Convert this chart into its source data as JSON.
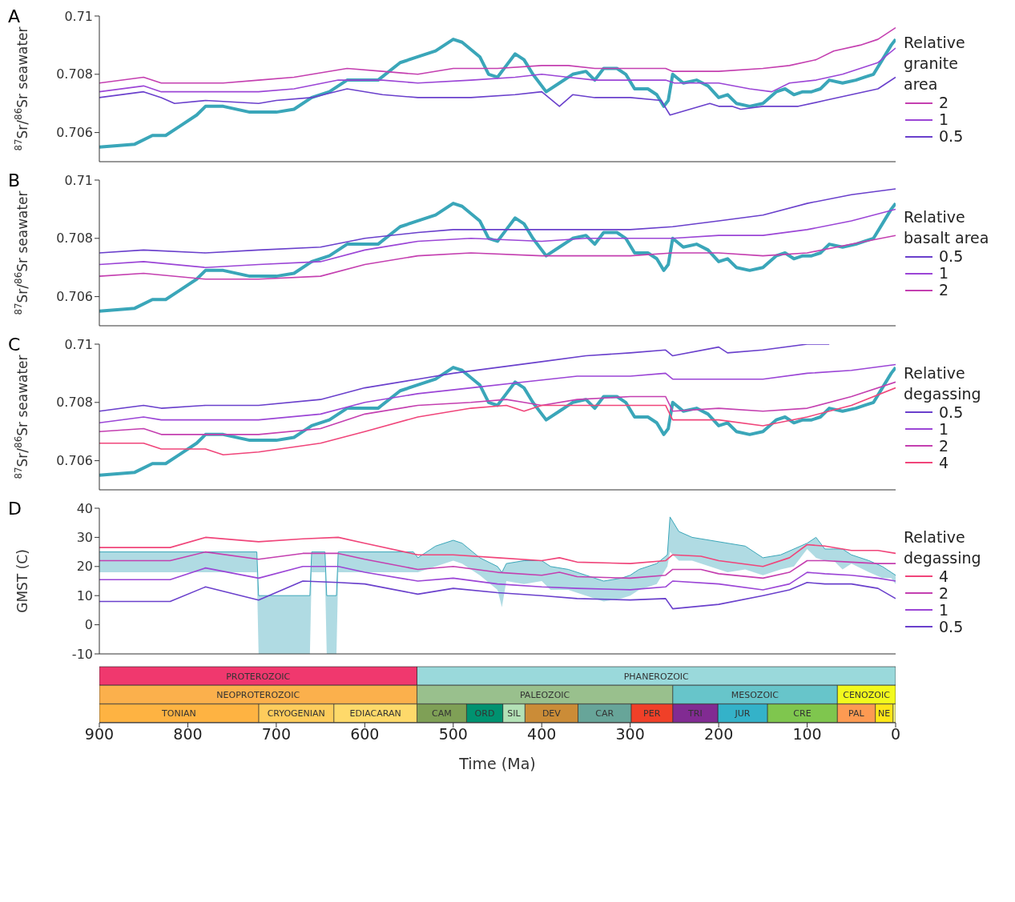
{
  "chart_data": [
    {
      "type": "line",
      "title": "A",
      "ylabel": "$^{87}$Sr/$^{86}$Sr seawater",
      "legend_title": "Relative granite area",
      "legend": "right",
      "xlim": [
        900,
        0
      ],
      "xticks": [
        900,
        800,
        700,
        600,
        500,
        400,
        300,
        200,
        100,
        0
      ],
      "ylim": [
        0.705,
        0.71
      ],
      "yticks": [
        0.706,
        0.708,
        0.71
      ],
      "tick_labels": "y",
      "series": [
        {
          "color": "#3aa6b9",
          "x": [
            900,
            860,
            840,
            825,
            810,
            790,
            780,
            760,
            730,
            700,
            680,
            660,
            640,
            620,
            600,
            585,
            560,
            540,
            520,
            500,
            490,
            470,
            460,
            450,
            440,
            430,
            420,
            410,
            395,
            380,
            365,
            350,
            340,
            330,
            315,
            305,
            295,
            280,
            270,
            262,
            257,
            252,
            240,
            225,
            212,
            200,
            190,
            180,
            165,
            150,
            135,
            125,
            115,
            105,
            95,
            85,
            75,
            60,
            45,
            35,
            25,
            15,
            5,
            0
          ],
          "values": [
            0.7055,
            0.7056,
            0.7059,
            0.7059,
            0.7062,
            0.7066,
            0.7069,
            0.7069,
            0.7067,
            0.7067,
            0.7068,
            0.7072,
            0.7074,
            0.7078,
            0.7078,
            0.7078,
            0.7084,
            0.7086,
            0.7088,
            0.7092,
            0.7091,
            0.7086,
            0.708,
            0.7079,
            0.7083,
            0.7087,
            0.7085,
            0.708,
            0.7074,
            0.7077,
            0.708,
            0.7081,
            0.7078,
            0.7082,
            0.7082,
            0.708,
            0.7075,
            0.7075,
            0.7073,
            0.7069,
            0.7071,
            0.708,
            0.7077,
            0.7078,
            0.7076,
            0.7072,
            0.7073,
            0.707,
            0.7069,
            0.707,
            0.7074,
            0.7075,
            0.7073,
            0.7074,
            0.7074,
            0.7075,
            0.7078,
            0.7077,
            0.7078,
            0.7079,
            0.708,
            0.7085,
            0.709,
            0.7092
          ]
        },
        {
          "name": "2",
          "color": "#c43fb0",
          "x": [
            900,
            850,
            830,
            800,
            760,
            720,
            680,
            620,
            580,
            540,
            500,
            450,
            400,
            370,
            340,
            300,
            260,
            252,
            200,
            150,
            120,
            90,
            70,
            40,
            20,
            0
          ],
          "values": [
            0.7077,
            0.7079,
            0.7077,
            0.7077,
            0.7077,
            0.7078,
            0.7079,
            0.7082,
            0.7081,
            0.708,
            0.7082,
            0.7082,
            0.7083,
            0.7083,
            0.7082,
            0.7082,
            0.7082,
            0.7081,
            0.7081,
            0.7082,
            0.7083,
            0.7085,
            0.7088,
            0.709,
            0.7092,
            0.7096
          ]
        },
        {
          "name": "1",
          "color": "#9b45d6",
          "x": [
            900,
            850,
            830,
            780,
            720,
            680,
            630,
            580,
            540,
            480,
            430,
            400,
            370,
            340,
            300,
            260,
            250,
            200,
            165,
            140,
            120,
            90,
            60,
            40,
            20,
            0
          ],
          "values": [
            0.7074,
            0.7076,
            0.7074,
            0.7074,
            0.7074,
            0.7075,
            0.7078,
            0.7078,
            0.7077,
            0.7078,
            0.7079,
            0.708,
            0.7079,
            0.7078,
            0.7078,
            0.7078,
            0.7077,
            0.7077,
            0.7075,
            0.7074,
            0.7077,
            0.7078,
            0.708,
            0.7082,
            0.7084,
            0.7089
          ]
        },
        {
          "name": "0.5",
          "color": "#6a40cc",
          "x": [
            900,
            850,
            830,
            815,
            780,
            720,
            700,
            660,
            620,
            580,
            540,
            480,
            430,
            400,
            380,
            365,
            340,
            300,
            265,
            255,
            210,
            200,
            185,
            175,
            150,
            130,
            110,
            80,
            50,
            20,
            0
          ],
          "values": [
            0.7072,
            0.7074,
            0.7072,
            0.707,
            0.7071,
            0.707,
            0.7071,
            0.7072,
            0.7075,
            0.7073,
            0.7072,
            0.7072,
            0.7073,
            0.7074,
            0.7069,
            0.7073,
            0.7072,
            0.7072,
            0.7071,
            0.7066,
            0.707,
            0.7069,
            0.7069,
            0.7068,
            0.7069,
            0.7069,
            0.7069,
            0.7071,
            0.7073,
            0.7075,
            0.7079
          ]
        }
      ]
    },
    {
      "type": "line",
      "title": "B",
      "ylabel": "$^{87}$Sr/$^{86}$Sr seawater",
      "legend_title": "Relative basalt area",
      "legend": "right",
      "xlim": [
        900,
        0
      ],
      "xticks": [
        900,
        800,
        700,
        600,
        500,
        400,
        300,
        200,
        100,
        0
      ],
      "ylim": [
        0.705,
        0.71
      ],
      "yticks": [
        0.706,
        0.708,
        0.71
      ],
      "tick_labels": "y",
      "series": [
        {
          "color": "#3aa6b9",
          "x": [
            900,
            860,
            840,
            825,
            810,
            790,
            780,
            760,
            730,
            700,
            680,
            660,
            640,
            620,
            600,
            585,
            560,
            540,
            520,
            500,
            490,
            470,
            460,
            450,
            440,
            430,
            420,
            410,
            395,
            380,
            365,
            350,
            340,
            330,
            315,
            305,
            295,
            280,
            270,
            262,
            257,
            252,
            240,
            225,
            212,
            200,
            190,
            180,
            165,
            150,
            135,
            125,
            115,
            105,
            95,
            85,
            75,
            60,
            45,
            35,
            25,
            15,
            5,
            0
          ],
          "values": [
            0.7055,
            0.7056,
            0.7059,
            0.7059,
            0.7062,
            0.7066,
            0.7069,
            0.7069,
            0.7067,
            0.7067,
            0.7068,
            0.7072,
            0.7074,
            0.7078,
            0.7078,
            0.7078,
            0.7084,
            0.7086,
            0.7088,
            0.7092,
            0.7091,
            0.7086,
            0.708,
            0.7079,
            0.7083,
            0.7087,
            0.7085,
            0.708,
            0.7074,
            0.7077,
            0.708,
            0.7081,
            0.7078,
            0.7082,
            0.7082,
            0.708,
            0.7075,
            0.7075,
            0.7073,
            0.7069,
            0.7071,
            0.708,
            0.7077,
            0.7078,
            0.7076,
            0.7072,
            0.7073,
            0.707,
            0.7069,
            0.707,
            0.7074,
            0.7075,
            0.7073,
            0.7074,
            0.7074,
            0.7075,
            0.7078,
            0.7077,
            0.7078,
            0.7079,
            0.708,
            0.7085,
            0.709,
            0.7092
          ]
        },
        {
          "name": "0.5",
          "color": "#6a40cc",
          "x": [
            900,
            850,
            780,
            720,
            650,
            600,
            540,
            500,
            450,
            400,
            360,
            300,
            252,
            200,
            150,
            100,
            50,
            0
          ],
          "values": [
            0.7075,
            0.7076,
            0.7075,
            0.7076,
            0.7077,
            0.708,
            0.7082,
            0.7083,
            0.7083,
            0.7083,
            0.7083,
            0.7083,
            0.7084,
            0.7086,
            0.7088,
            0.7092,
            0.7095,
            0.7097
          ]
        },
        {
          "name": "1",
          "color": "#9b45d6",
          "x": [
            900,
            850,
            780,
            720,
            650,
            600,
            540,
            480,
            400,
            350,
            300,
            252,
            200,
            150,
            100,
            50,
            0
          ],
          "values": [
            0.7071,
            0.7072,
            0.707,
            0.7071,
            0.7072,
            0.7076,
            0.7079,
            0.708,
            0.7079,
            0.708,
            0.708,
            0.708,
            0.7081,
            0.7081,
            0.7083,
            0.7086,
            0.709
          ]
        },
        {
          "name": "2",
          "color": "#c43fb0",
          "x": [
            900,
            850,
            780,
            720,
            650,
            600,
            540,
            480,
            400,
            350,
            300,
            252,
            200,
            150,
            100,
            50,
            0
          ],
          "values": [
            0.7067,
            0.7068,
            0.7066,
            0.7066,
            0.7067,
            0.7071,
            0.7074,
            0.7075,
            0.7074,
            0.7074,
            0.7074,
            0.7075,
            0.7075,
            0.7074,
            0.7075,
            0.7078,
            0.7081
          ]
        }
      ]
    },
    {
      "type": "line",
      "title": "C",
      "ylabel": "$^{87}$Sr/$^{86}$Sr seawater",
      "legend_title": "Relative degassing",
      "legend": "right",
      "xlim": [
        900,
        0
      ],
      "xticks": [
        900,
        800,
        700,
        600,
        500,
        400,
        300,
        200,
        100,
        0
      ],
      "ylim": [
        0.705,
        0.71
      ],
      "yticks": [
        0.706,
        0.708,
        0.71
      ],
      "tick_labels": "y",
      "series": [
        {
          "color": "#3aa6b9",
          "x": [
            900,
            860,
            840,
            825,
            810,
            790,
            780,
            760,
            730,
            700,
            680,
            660,
            640,
            620,
            600,
            585,
            560,
            540,
            520,
            500,
            490,
            470,
            460,
            450,
            440,
            430,
            420,
            410,
            395,
            380,
            365,
            350,
            340,
            330,
            315,
            305,
            295,
            280,
            270,
            262,
            257,
            252,
            240,
            225,
            212,
            200,
            190,
            180,
            165,
            150,
            135,
            125,
            115,
            105,
            95,
            85,
            75,
            60,
            45,
            35,
            25,
            15,
            5,
            0
          ],
          "values": [
            0.7055,
            0.7056,
            0.7059,
            0.7059,
            0.7062,
            0.7066,
            0.7069,
            0.7069,
            0.7067,
            0.7067,
            0.7068,
            0.7072,
            0.7074,
            0.7078,
            0.7078,
            0.7078,
            0.7084,
            0.7086,
            0.7088,
            0.7092,
            0.7091,
            0.7086,
            0.708,
            0.7079,
            0.7083,
            0.7087,
            0.7085,
            0.708,
            0.7074,
            0.7077,
            0.708,
            0.7081,
            0.7078,
            0.7082,
            0.7082,
            0.708,
            0.7075,
            0.7075,
            0.7073,
            0.7069,
            0.7071,
            0.708,
            0.7077,
            0.7078,
            0.7076,
            0.7072,
            0.7073,
            0.707,
            0.7069,
            0.707,
            0.7074,
            0.7075,
            0.7073,
            0.7074,
            0.7074,
            0.7075,
            0.7078,
            0.7077,
            0.7078,
            0.7079,
            0.708,
            0.7085,
            0.709,
            0.7092
          ]
        },
        {
          "name": "0.5",
          "color": "#6a40cc",
          "x": [
            900,
            850,
            830,
            780,
            720,
            650,
            600,
            540,
            500,
            450,
            400,
            350,
            300,
            260,
            252,
            200,
            190,
            150,
            100,
            75
          ],
          "values": [
            0.7077,
            0.7079,
            0.7078,
            0.7079,
            0.7079,
            0.7081,
            0.7085,
            0.7088,
            0.709,
            0.7092,
            0.7094,
            0.7096,
            0.7097,
            0.7098,
            0.7096,
            0.7099,
            0.7097,
            0.7098,
            0.71,
            0.71
          ]
        },
        {
          "name": "1",
          "color": "#9b45d6",
          "x": [
            900,
            850,
            830,
            780,
            720,
            650,
            600,
            540,
            480,
            420,
            360,
            300,
            260,
            252,
            200,
            150,
            100,
            50,
            0
          ],
          "values": [
            0.7073,
            0.7075,
            0.7074,
            0.7074,
            0.7074,
            0.7076,
            0.708,
            0.7083,
            0.7085,
            0.7087,
            0.7089,
            0.7089,
            0.709,
            0.7088,
            0.7088,
            0.7088,
            0.709,
            0.7091,
            0.7093
          ]
        },
        {
          "name": "2",
          "color": "#c43fb0",
          "x": [
            900,
            850,
            830,
            780,
            720,
            650,
            600,
            540,
            480,
            440,
            420,
            400,
            360,
            300,
            260,
            252,
            200,
            150,
            100,
            50,
            0
          ],
          "values": [
            0.707,
            0.7071,
            0.7069,
            0.7069,
            0.7069,
            0.7071,
            0.7076,
            0.7079,
            0.708,
            0.7081,
            0.708,
            0.7079,
            0.7081,
            0.7082,
            0.7082,
            0.7077,
            0.7078,
            0.7077,
            0.7078,
            0.7082,
            0.7087
          ]
        },
        {
          "name": "4",
          "color": "#f0457a",
          "x": [
            900,
            850,
            830,
            780,
            760,
            720,
            650,
            600,
            540,
            480,
            440,
            420,
            400,
            360,
            300,
            260,
            252,
            200,
            150,
            100,
            50,
            0
          ],
          "values": [
            0.7066,
            0.7066,
            0.7064,
            0.7064,
            0.7062,
            0.7063,
            0.7066,
            0.707,
            0.7075,
            0.7078,
            0.7079,
            0.7077,
            0.7079,
            0.7079,
            0.7079,
            0.7079,
            0.7074,
            0.7074,
            0.7072,
            0.7075,
            0.7079,
            0.7085
          ]
        }
      ]
    },
    {
      "type": "line",
      "title": "D",
      "ylabel": "GMST (C)",
      "legend_title": "Relative degassing",
      "legend": "right",
      "xlim": [
        900,
        0
      ],
      "xticks": [
        900,
        800,
        700,
        600,
        500,
        400,
        300,
        200,
        100,
        0
      ],
      "ylim": [
        -10,
        40
      ],
      "yticks": [
        -10,
        0,
        10,
        20,
        30,
        40
      ],
      "tick_labels": "y",
      "series": [
        {
          "type": "line",
          "color": "#3aa6b9",
          "x": [
            900,
            722,
            720,
            662,
            660,
            645,
            643,
            632,
            630,
            545,
            540,
            520,
            500,
            490,
            470,
            450,
            445,
            440,
            420,
            400,
            390,
            370,
            350,
            330,
            310,
            300,
            290,
            270,
            258,
            255,
            245,
            230,
            210,
            190,
            170,
            150,
            130,
            115,
            100,
            90,
            80,
            70,
            60,
            50,
            30,
            15,
            5,
            0
          ],
          "lower": [
            18,
            18,
            -10,
            -10,
            18,
            18,
            -10,
            -10,
            18,
            18,
            18,
            20,
            22,
            21,
            17,
            12,
            6,
            15,
            14,
            15,
            12,
            12,
            10,
            8,
            9,
            10,
            12,
            14,
            20,
            25,
            22,
            22,
            20,
            18,
            19,
            17,
            19,
            20,
            26,
            23,
            22,
            22,
            19,
            21,
            18,
            16,
            16,
            14
          ],
          "values": [
            25,
            25,
            10,
            10,
            25,
            25,
            10,
            10,
            25,
            25,
            23,
            27,
            29,
            28,
            23,
            20,
            18,
            21,
            22,
            22,
            20,
            19,
            17,
            15,
            16,
            17,
            19,
            21,
            24,
            37,
            32,
            30,
            29,
            28,
            27,
            23,
            24,
            26,
            28,
            30,
            26,
            26,
            26,
            24,
            22,
            20,
            18,
            17
          ],
          "upper": [
            25,
            25,
            10,
            10,
            25,
            25,
            10,
            10,
            25,
            25,
            23,
            27,
            29,
            28,
            23,
            20,
            18,
            21,
            22,
            22,
            20,
            19,
            17,
            15,
            16,
            17,
            19,
            21,
            24,
            37,
            32,
            30,
            29,
            28,
            27,
            23,
            24,
            26,
            28,
            30,
            26,
            26,
            26,
            24,
            22,
            20,
            18,
            17
          ]
        },
        {
          "name": "4",
          "color": "#f0457a",
          "x": [
            900,
            820,
            780,
            720,
            670,
            630,
            600,
            540,
            500,
            450,
            400,
            380,
            360,
            300,
            260,
            252,
            220,
            200,
            150,
            120,
            100,
            80,
            50,
            20,
            0
          ],
          "values": [
            26.5,
            26.5,
            30,
            28.5,
            29.5,
            30,
            28,
            24,
            24,
            23,
            22,
            23,
            21.5,
            21,
            22,
            24,
            23.5,
            22,
            20,
            23,
            27.5,
            27,
            25.5,
            25.5,
            24.5
          ]
        },
        {
          "name": "2",
          "color": "#c43fb0",
          "x": [
            900,
            820,
            780,
            720,
            670,
            630,
            600,
            540,
            500,
            450,
            400,
            380,
            360,
            300,
            260,
            252,
            220,
            200,
            150,
            120,
            100,
            80,
            50,
            20,
            0
          ],
          "values": [
            22,
            22,
            25,
            22.5,
            24.5,
            24.5,
            22.5,
            19,
            20,
            18,
            17,
            18,
            16.5,
            16,
            17,
            19,
            19,
            17.5,
            16,
            18,
            22,
            22,
            21.5,
            21,
            21
          ]
        },
        {
          "name": "1",
          "color": "#9b45d6",
          "x": [
            900,
            820,
            780,
            720,
            670,
            630,
            600,
            540,
            500,
            450,
            400,
            360,
            300,
            260,
            252,
            200,
            150,
            120,
            100,
            80,
            50,
            20,
            0
          ],
          "values": [
            15.5,
            15.5,
            19.5,
            16,
            20,
            20,
            18,
            15,
            16,
            14,
            13,
            12.5,
            12,
            13,
            15,
            14,
            12,
            14,
            18,
            17.5,
            17,
            16,
            15
          ]
        },
        {
          "name": "0.5",
          "color": "#6a40cc",
          "x": [
            900,
            820,
            780,
            720,
            670,
            630,
            600,
            540,
            500,
            450,
            400,
            360,
            300,
            260,
            252,
            200,
            150,
            120,
            100,
            80,
            50,
            20,
            0
          ],
          "values": [
            8,
            8,
            13,
            8.5,
            15,
            14.5,
            14,
            10.5,
            12.5,
            11,
            10,
            9,
            8.5,
            9,
            5.5,
            7,
            10,
            12,
            14.5,
            14,
            14,
            12.5,
            9
          ]
        }
      ]
    },
    {
      "type": "bar",
      "orientation": "horizontal",
      "stacked": true,
      "xlabel": "Time (Ma)",
      "xlim": [
        900,
        0
      ],
      "xticks": [
        900,
        800,
        700,
        600,
        500,
        400,
        300,
        200,
        100,
        0
      ],
      "tick_labels": "x",
      "categories": [
        null,
        null,
        null
      ],
      "series": [
        {
          "values": [
            541,
            66,
            3
          ],
          "colors": [
            "#9ad9db",
            "#f2f91d",
            "#f9f97f"
          ],
          "value_labels": [
            "PHANEROZOIC",
            "CENOZOIC",
            null
          ]
        },
        {
          "values": [
            359,
            186,
            20
          ],
          "colors": [
            "#f0386e",
            "#67c5ca",
            "#ffe619"
          ],
          "value_labels": [
            "PROTEROZOIC",
            "MESOZOIC",
            "NE"
          ]
        },
        {
          "values": [
            null,
            289,
            43
          ],
          "colors": [
            null,
            "#99c08d",
            "#fd9a52"
          ],
          "value_labels": [
            null,
            "PALEOZOIC",
            "PAL"
          ]
        },
        {
          "values": [
            null,
            359,
            79
          ],
          "colors": [
            null,
            "#fbb04c",
            "#7fc64e"
          ],
          "value_labels": [
            null,
            "NEOPROTEROZOIC",
            "CRE"
          ]
        },
        {
          "values": [
            null,
            null,
            56
          ],
          "colors": [
            null,
            null,
            "#34b2c9"
          ],
          "value_labels": [
            null,
            null,
            "JUR"
          ]
        },
        {
          "values": [
            null,
            null,
            51
          ],
          "colors": [
            null,
            null,
            "#812b92"
          ],
          "value_labels": [
            null,
            null,
            "TRI"
          ]
        },
        {
          "values": [
            null,
            null,
            47
          ],
          "colors": [
            null,
            null,
            "#f04028"
          ],
          "value_labels": [
            null,
            null,
            "PER"
          ]
        },
        {
          "values": [
            null,
            null,
            60
          ],
          "colors": [
            null,
            null,
            "#67a599"
          ],
          "value_labels": [
            null,
            null,
            "CAR"
          ]
        },
        {
          "values": [
            null,
            null,
            60
          ],
          "colors": [
            null,
            null,
            "#cb8c37"
          ],
          "value_labels": [
            null,
            null,
            "DEV"
          ]
        },
        {
          "values": [
            null,
            null,
            25
          ],
          "colors": [
            null,
            null,
            "#b3e1b6"
          ],
          "value_labels": [
            null,
            null,
            "SIL"
          ]
        },
        {
          "values": [
            null,
            null,
            41
          ],
          "colors": [
            null,
            null,
            "#009270"
          ],
          "value_labels": [
            null,
            null,
            "ORD"
          ]
        },
        {
          "values": [
            null,
            null,
            56
          ],
          "colors": [
            null,
            null,
            "#7fa056"
          ],
          "value_labels": [
            null,
            null,
            "CAM"
          ]
        },
        {
          "values": [
            null,
            null,
            94
          ],
          "colors": [
            null,
            null,
            "#fed96a"
          ],
          "value_labels": [
            null,
            null,
            "EDIACARAN"
          ]
        },
        {
          "values": [
            null,
            null,
            85
          ],
          "colors": [
            null,
            null,
            "#fecc5c"
          ],
          "value_labels": [
            null,
            null,
            "CRYOGENIAN"
          ]
        },
        {
          "values": [
            null,
            null,
            180
          ],
          "colors": [
            null,
            null,
            "#feb342"
          ],
          "value_labels": [
            null,
            null,
            "TONIAN"
          ]
        }
      ]
    }
  ]
}
